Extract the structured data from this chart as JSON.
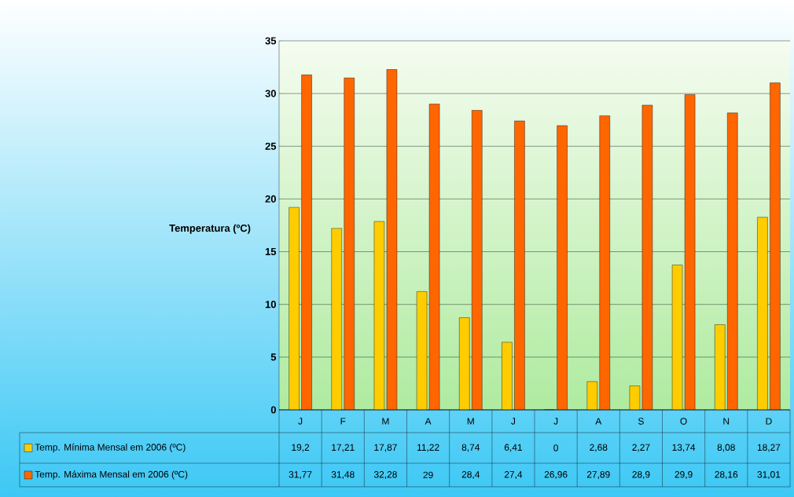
{
  "chart_data": {
    "type": "bar",
    "ylabel": "Temperatura (ºC)",
    "categories": [
      "J",
      "F",
      "M",
      "A",
      "M",
      "J",
      "J",
      "A",
      "S",
      "O",
      "N",
      "D"
    ],
    "series": [
      {
        "name": "Temp. Mínima Mensal em 2006 (ºC)",
        "color": "#ffcc00",
        "values": [
          19.2,
          17.21,
          17.87,
          11.22,
          8.74,
          6.41,
          0,
          2.68,
          2.27,
          13.74,
          8.08,
          18.27
        ],
        "value_labels": [
          "19,2",
          "17,21",
          "17,87",
          "11,22",
          "8,74",
          "6,41",
          "0",
          "2,68",
          "2,27",
          "13,74",
          "8,08",
          "18,27"
        ]
      },
      {
        "name": "Temp. Máxima Mensal em 2006 (ºC)",
        "color": "#ff6600",
        "values": [
          31.77,
          31.48,
          32.28,
          29,
          28.4,
          27.4,
          26.96,
          27.89,
          28.9,
          29.9,
          28.16,
          31.01
        ],
        "value_labels": [
          "31,77",
          "31,48",
          "32,28",
          "29",
          "28,4",
          "27,4",
          "26,96",
          "27,89",
          "28,9",
          "29,9",
          "28,16",
          "31,01"
        ]
      }
    ],
    "ylim": [
      0,
      35
    ],
    "yticks": [
      0,
      5,
      10,
      15,
      20,
      25,
      30,
      35
    ],
    "grid": "y",
    "legend": "bottom"
  }
}
